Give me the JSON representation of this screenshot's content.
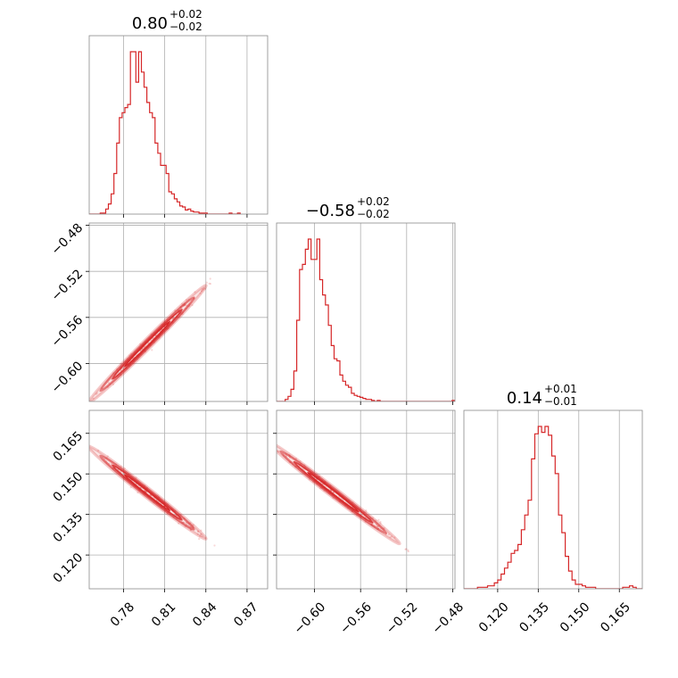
{
  "colors": {
    "accent": "#d62728",
    "grid": "#b0b0b0",
    "frame": "#8a8a8a"
  },
  "chart_data": {
    "type": "corner",
    "grid": true,
    "parameters": [
      {
        "range": [
          0.755,
          0.885
        ],
        "ticks": [
          "0.78",
          "0.81",
          "0.84",
          "0.87"
        ],
        "tick_values": [
          0.78,
          0.81,
          0.84,
          0.87
        ],
        "title": {
          "median": "0.80",
          "plus": "+0.02",
          "minus": "−0.02"
        }
      },
      {
        "range": [
          -0.633,
          -0.478
        ],
        "ticks": [
          "−0.60",
          "−0.56",
          "−0.52",
          "−0.48"
        ],
        "tick_values": [
          -0.6,
          -0.56,
          -0.52,
          -0.48
        ],
        "title": {
          "median": "−0.58",
          "plus": "+0.02",
          "minus": "−0.02"
        }
      },
      {
        "range": [
          0.1075,
          0.1735
        ],
        "ticks": [
          "0.120",
          "0.135",
          "0.150",
          "0.165"
        ],
        "tick_values": [
          0.12,
          0.135,
          0.15,
          0.165
        ],
        "title": {
          "median": "0.14",
          "plus": "+0.01",
          "minus": "−0.01"
        }
      }
    ],
    "histograms": [
      {
        "param": 0,
        "bin_start": 0.755,
        "bin_width": 0.002,
        "counts": [
          0,
          0,
          0,
          0,
          1,
          1,
          5,
          10,
          20,
          40,
          70,
          95,
          100,
          105,
          108,
          160,
          160,
          130,
          160,
          140,
          125,
          110,
          100,
          95,
          70,
          60,
          48,
          48,
          40,
          22,
          20,
          15,
          12,
          8,
          7,
          4,
          5,
          3,
          2,
          2,
          1,
          1,
          1,
          0,
          0,
          0,
          0,
          0,
          0,
          0,
          0,
          1,
          0,
          0,
          1
        ]
      },
      {
        "param": 1,
        "bin_start": -0.633,
        "bin_width": 0.0025,
        "counts": [
          0,
          0,
          0,
          2,
          5,
          12,
          30,
          80,
          130,
          135,
          150,
          160,
          140,
          140,
          160,
          120,
          105,
          95,
          75,
          55,
          42,
          40,
          26,
          20,
          16,
          14,
          8,
          6,
          5,
          4,
          3,
          2,
          2,
          1,
          0,
          1,
          0,
          0,
          0,
          0,
          0,
          0,
          0,
          0,
          0,
          0,
          0,
          0,
          0,
          0,
          0,
          0,
          0,
          0,
          0,
          0,
          0,
          0,
          0,
          0,
          0,
          1
        ]
      },
      {
        "param": 2,
        "bin_start": 0.1075,
        "bin_width": 0.00125,
        "counts": [
          0,
          0,
          0,
          0,
          1,
          1,
          1,
          2,
          2,
          4,
          6,
          10,
          14,
          18,
          24,
          26,
          30,
          40,
          50,
          60,
          88,
          105,
          110,
          106,
          110,
          104,
          90,
          78,
          50,
          38,
          22,
          12,
          6,
          3,
          3,
          2,
          1,
          1,
          1,
          0,
          0,
          0,
          0,
          0,
          0,
          0,
          0,
          1,
          1,
          2,
          1,
          0,
          0
        ]
      }
    ],
    "joint": [
      {
        "x_param": 0,
        "y_param": 1,
        "center_x": 0.8,
        "center_y": -0.58,
        "slope": 1.19,
        "x_range": [
          0.76,
          0.87
        ]
      },
      {
        "x_param": 0,
        "y_param": 2,
        "center_x": 0.8,
        "center_y": 0.142,
        "slope": -0.4,
        "x_range": [
          0.76,
          0.87
        ]
      },
      {
        "x_param": 1,
        "y_param": 2,
        "center_x": -0.58,
        "center_y": 0.142,
        "slope": -0.33,
        "x_range": [
          -0.628,
          -0.48
        ]
      }
    ]
  }
}
